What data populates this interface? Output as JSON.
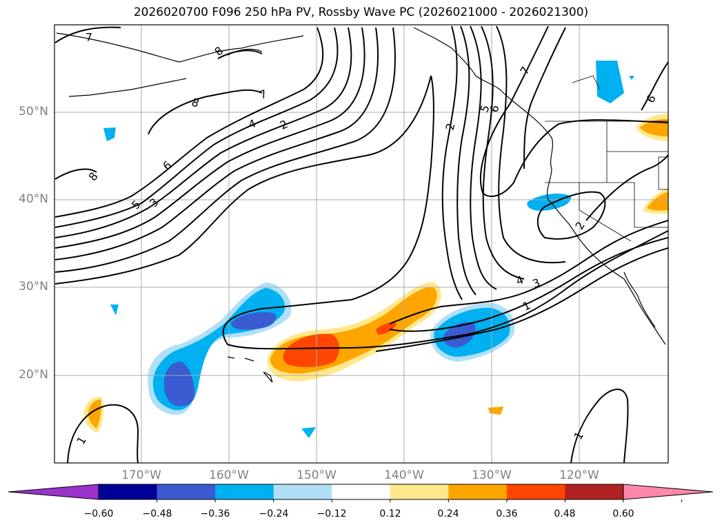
{
  "title": "2026020700 F096 250 hPa PV, Rossby Wave PC (2026021000 - 2026021300)",
  "lat_labels": [
    "50°N",
    "40°N",
    "30°N",
    "20°N"
  ],
  "lon_labels": [
    "170°W",
    "160°W",
    "150°W",
    "140°W",
    "130°W",
    "120°W"
  ],
  "colorbar": {
    "tick_labels": [
      "−0.60",
      "−0.48",
      "−0.36",
      "−0.24",
      "−0.12",
      "0.12",
      "0.24",
      "0.36",
      "0.48",
      "0.60"
    ],
    "colors": [
      "#9933cc",
      "#000099",
      "#3a5bd1",
      "#00b0f0",
      "#b0e0f8",
      "#ffffff",
      "#ffe88a",
      "#ffa500",
      "#ff4500",
      "#b22222",
      "#ff88aa"
    ]
  },
  "contour_labels": [
    {
      "text": "7"
    },
    {
      "text": "8"
    },
    {
      "text": "7"
    },
    {
      "text": "8"
    },
    {
      "text": "4"
    },
    {
      "text": "2"
    },
    {
      "text": "6"
    },
    {
      "text": "8"
    },
    {
      "text": "5"
    },
    {
      "text": "3"
    },
    {
      "text": "2"
    },
    {
      "text": "5"
    },
    {
      "text": "6"
    },
    {
      "text": "7"
    },
    {
      "text": "6"
    },
    {
      "text": "2"
    },
    {
      "text": "4"
    },
    {
      "text": "3"
    },
    {
      "text": "1"
    },
    {
      "text": "1"
    },
    {
      "text": "1"
    }
  ]
}
